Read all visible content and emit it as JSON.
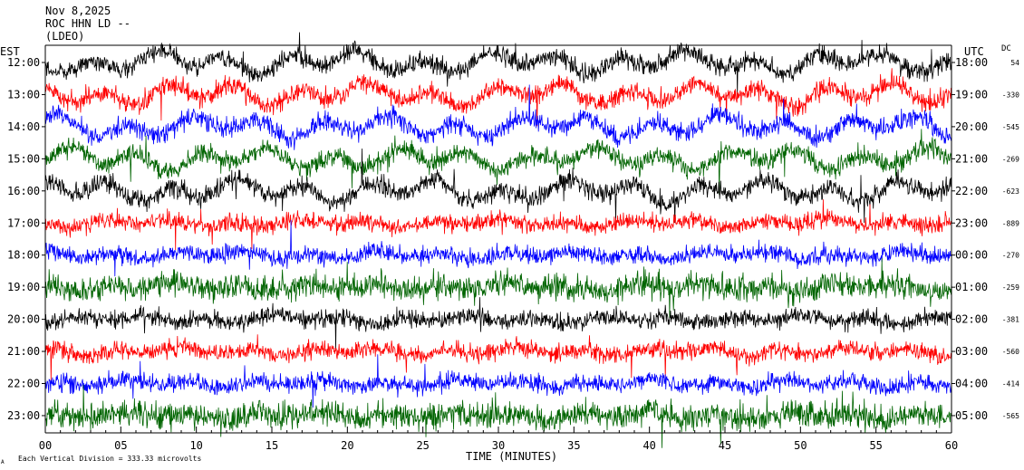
{
  "header": {
    "date": "Nov 8,2025",
    "station": "ROC HHN LD --",
    "network": "(LDEO)"
  },
  "footer": {
    "scale_note": "Each Vertical Division =  333.33 microvolts",
    "corner_mark": "A"
  },
  "chart_data": {
    "type": "line",
    "title": "",
    "xlabel": "TIME (MINUTES)",
    "ylabel": "",
    "xlim": [
      0,
      60
    ],
    "x_ticks": [
      "00",
      "05",
      "10",
      "15",
      "20",
      "25",
      "30",
      "35",
      "40",
      "45",
      "50",
      "55",
      "60"
    ],
    "left_axis_label": "EST",
    "right_axis_label": "UTC",
    "dc_label": "DC",
    "colors_cycle": [
      "#000000",
      "#ff0000",
      "#0000ff",
      "#006400"
    ],
    "traces": [
      {
        "est": "12:00",
        "utc": "18:00",
        "dc": "54"
      },
      {
        "est": "13:00",
        "utc": "19:00",
        "dc": "-330"
      },
      {
        "est": "14:00",
        "utc": "20:00",
        "dc": "-545"
      },
      {
        "est": "15:00",
        "utc": "21:00",
        "dc": "-269"
      },
      {
        "est": "16:00",
        "utc": "22:00",
        "dc": "-623"
      },
      {
        "est": "17:00",
        "utc": "23:00",
        "dc": "-889"
      },
      {
        "est": "18:00",
        "utc": "00:00",
        "dc": "-270"
      },
      {
        "est": "19:00",
        "utc": "01:00",
        "dc": "-259"
      },
      {
        "est": "20:00",
        "utc": "02:00",
        "dc": "-381"
      },
      {
        "est": "21:00",
        "utc": "03:00",
        "dc": "-560"
      },
      {
        "est": "22:00",
        "utc": "04:00",
        "dc": "-414"
      },
      {
        "est": "23:00",
        "utc": "05:00",
        "dc": "-565"
      }
    ],
    "grid": false
  }
}
